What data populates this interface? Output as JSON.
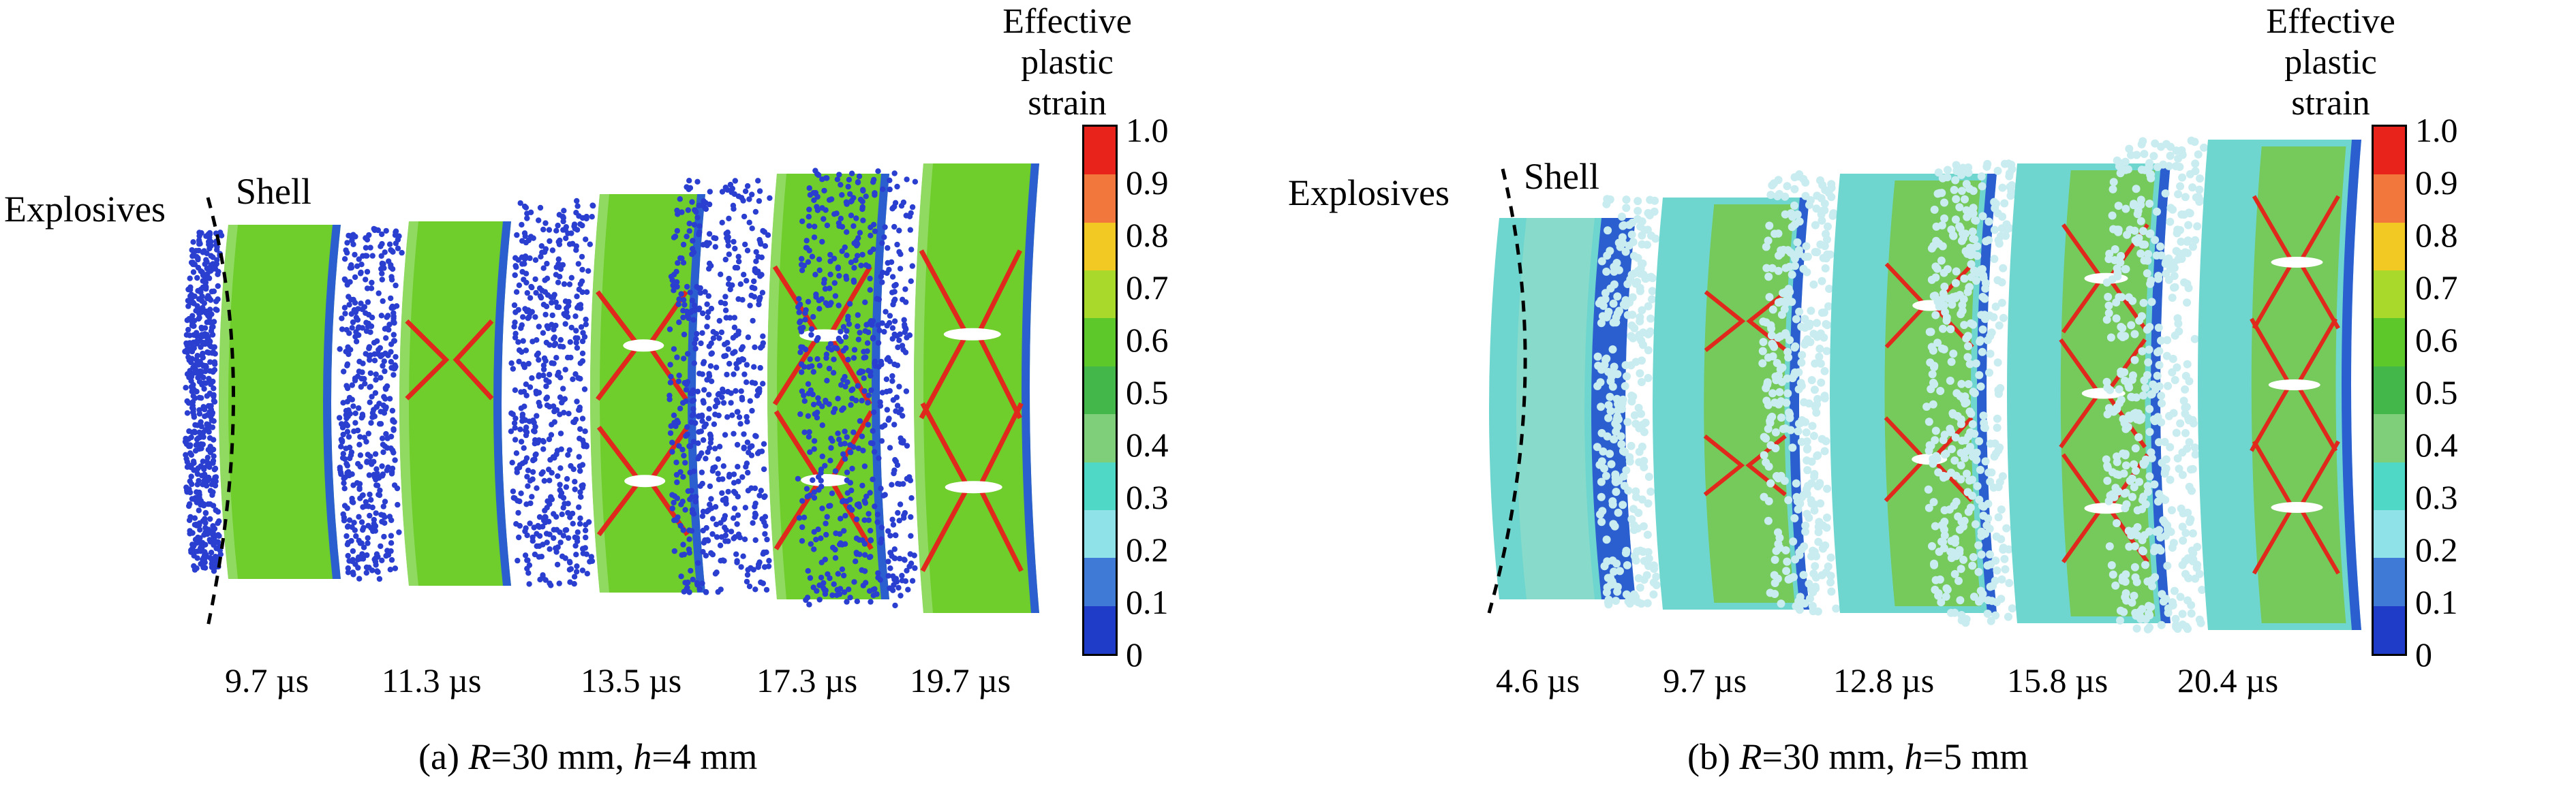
{
  "panels": [
    {
      "id": "a",
      "caption_pre": "(a) ",
      "caption_R": "R",
      "caption_mid": "=30 mm, ",
      "caption_h": "h",
      "caption_post": "=4 mm",
      "explosives_label": "Explosives",
      "shell_label": "Shell",
      "times": [
        "9.7 µs",
        "11.3 µs",
        "13.5 µs",
        "17.3 µs",
        "19.7 µs"
      ]
    },
    {
      "id": "b",
      "caption_pre": "(b) ",
      "caption_R": "R",
      "caption_mid": "=30 mm, ",
      "caption_h": "h",
      "caption_post": "=5 mm",
      "explosives_label": "Explosives",
      "shell_label": "Shell",
      "times": [
        "4.6 µs",
        "9.7 µs",
        "12.8 µs",
        "15.8 µs",
        "20.4 µs"
      ]
    }
  ],
  "colorbar": {
    "title_line1": "Effective plastic",
    "title_line2": "strain",
    "ticks": [
      "1.0",
      "0.9",
      "0.8",
      "0.7",
      "0.6",
      "0.5",
      "0.4",
      "0.3",
      "0.2",
      "0.1",
      "0"
    ],
    "colors": [
      "#e8231b",
      "#f2773d",
      "#f2c822",
      "#a9d92a",
      "#5cc82a",
      "#43b74a",
      "#7fcf7a",
      "#4fd8c6",
      "#8fe3e8",
      "#3f7bd6",
      "#1f3cc8"
    ]
  },
  "colors": {
    "explosive_dot": "#2a3fd0",
    "shell_green": "#6fce2b",
    "crack_red": "#e0281d",
    "edge_blue": "#2b5fd0",
    "shell_cyan": "#6fd6cf",
    "debris_light": "#c8ecef"
  }
}
